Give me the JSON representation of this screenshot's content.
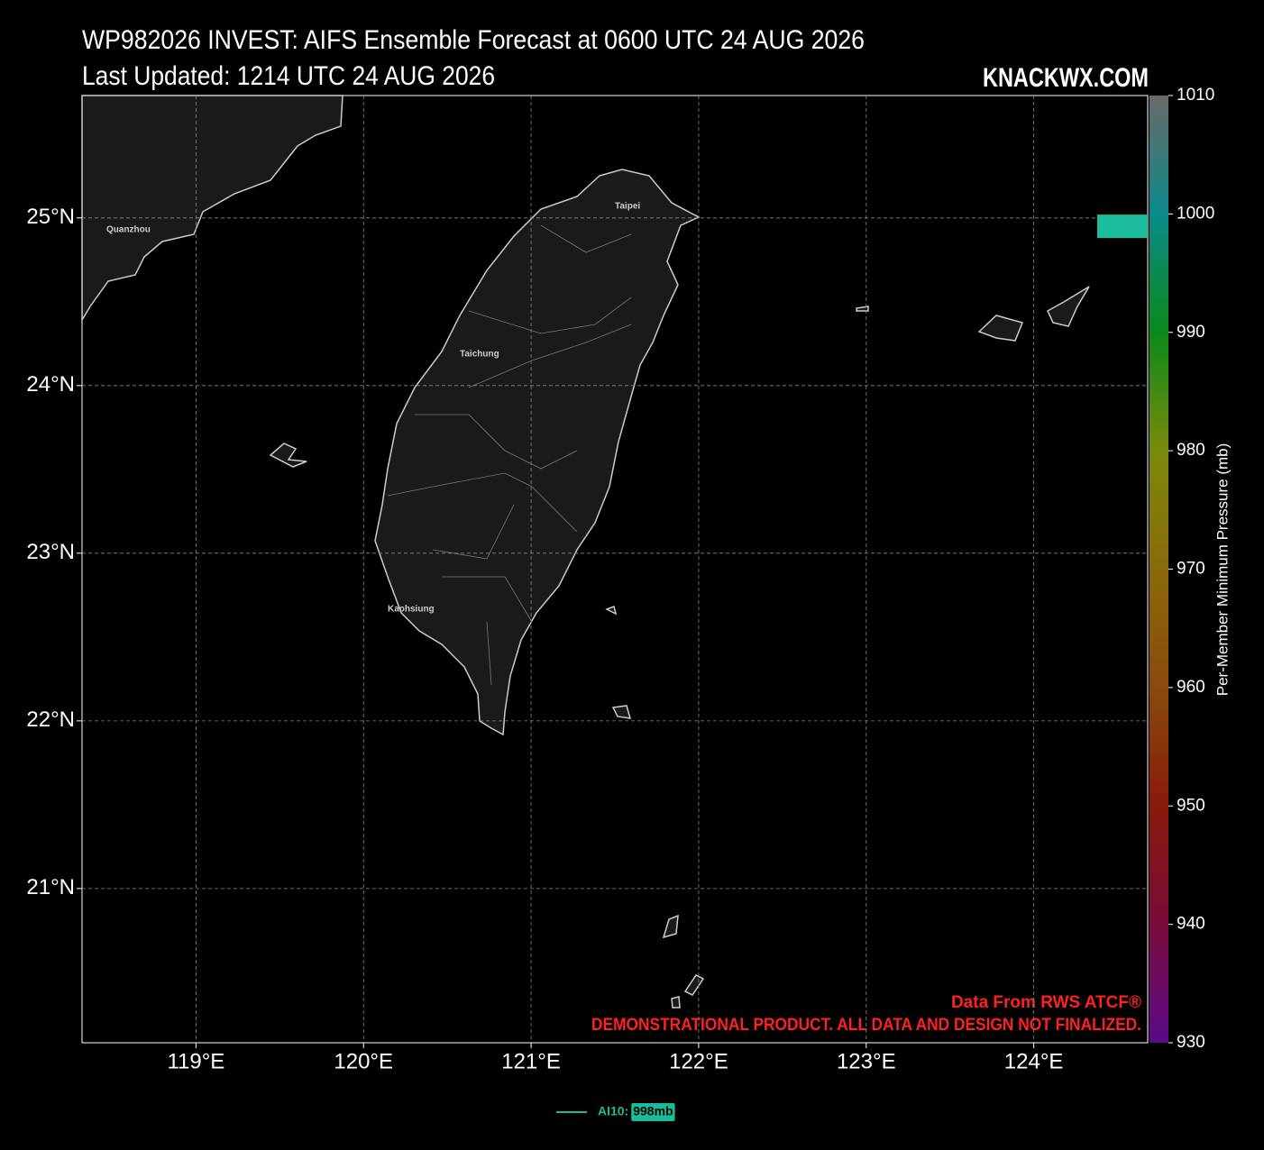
{
  "chart_data": {
    "type": "track-map",
    "title": "WP982026 INVEST: AIFS Ensemble Forecast at 0600 UTC 24 AUG 2026",
    "subtitle": "Last Updated: 1214 UTC 24 AUG 2026",
    "brand": "KNACKWX.COM",
    "footer": [
      "Data From RWS ATCF®",
      "DEMONSTRATIONAL PRODUCT. ALL DATA AND DESIGN NOT FINALIZED."
    ],
    "xlim": [
      118.32,
      124.68
    ],
    "ylim": [
      20.08,
      25.73
    ],
    "xticks": [
      {
        "value": 119,
        "label": "119°E"
      },
      {
        "value": 120,
        "label": "120°E"
      },
      {
        "value": 121,
        "label": "121°E"
      },
      {
        "value": 122,
        "label": "122°E"
      },
      {
        "value": 123,
        "label": "123°E"
      },
      {
        "value": 124,
        "label": "124°E"
      }
    ],
    "yticks": [
      {
        "value": 21,
        "label": "21°N"
      },
      {
        "value": 22,
        "label": "22°N"
      },
      {
        "value": 23,
        "label": "23°N"
      },
      {
        "value": 24,
        "label": "24°N"
      },
      {
        "value": 25,
        "label": "25°N"
      }
    ],
    "grid": true,
    "cities": [
      "Quanzhou",
      "Taipei",
      "Taichung",
      "Kaohsiung"
    ],
    "colorbar": {
      "label": "Per-Member Minimum Pressure (mb)",
      "lim": [
        930,
        1010
      ],
      "ticks": [
        930,
        940,
        950,
        960,
        970,
        980,
        990,
        1000,
        1010
      ],
      "colors": [
        "#5a0a8a",
        "#7a0a3a",
        "#8a1a0a",
        "#8a4a0a",
        "#8a6a0a",
        "#7a8a0a",
        "#0a8a1a",
        "#0a8a8a",
        "#6a6a6a"
      ]
    },
    "series": [
      {
        "name": "AI10:",
        "color": "#1abc9c",
        "lon": [
          124.53
        ],
        "lat": [
          24.95
        ],
        "values": [
          998
        ],
        "value_labels": [
          "998mb"
        ]
      }
    ]
  }
}
